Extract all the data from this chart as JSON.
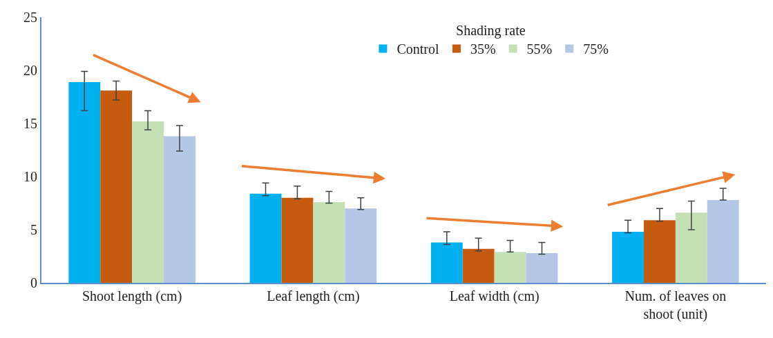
{
  "chart_data": {
    "type": "bar",
    "categories": [
      "Shoot length (cm)",
      "Leaf length (cm)",
      "Leaf width (cm)",
      "Num. of leaves on shoot (unit)"
    ],
    "legend_title": "Shading rate",
    "series": [
      {
        "name": "Control",
        "color": "#00b0f0",
        "values": [
          18.9,
          8.4,
          3.8,
          4.8
        ],
        "errors": [
          [
            16.2,
            19.9
          ],
          [
            8.2,
            9.4
          ],
          [
            3.6,
            4.8
          ],
          [
            4.7,
            5.9
          ]
        ]
      },
      {
        "name": "35%",
        "color": "#c55a11",
        "values": [
          18.1,
          8.0,
          3.2,
          5.9
        ],
        "errors": [
          [
            17.2,
            19.0
          ],
          [
            7.9,
            9.1
          ],
          [
            3.0,
            4.2
          ],
          [
            5.8,
            7.0
          ]
        ]
      },
      {
        "name": "55%",
        "color": "#c5e0b4",
        "values": [
          15.2,
          7.6,
          2.9,
          6.6
        ],
        "errors": [
          [
            14.4,
            16.2
          ],
          [
            7.5,
            8.6
          ],
          [
            2.9,
            4.0
          ],
          [
            5.0,
            7.7
          ]
        ]
      },
      {
        "name": "75%",
        "color": "#b4c7e7",
        "values": [
          13.8,
          7.0,
          2.8,
          7.8
        ],
        "errors": [
          [
            12.4,
            14.8
          ],
          [
            6.9,
            8.0
          ],
          [
            2.7,
            3.8
          ],
          [
            7.8,
            8.9
          ]
        ]
      }
    ],
    "ylim": [
      0,
      25
    ],
    "yticks": [
      0,
      5,
      10,
      15,
      20,
      25
    ],
    "legend": "top"
  }
}
